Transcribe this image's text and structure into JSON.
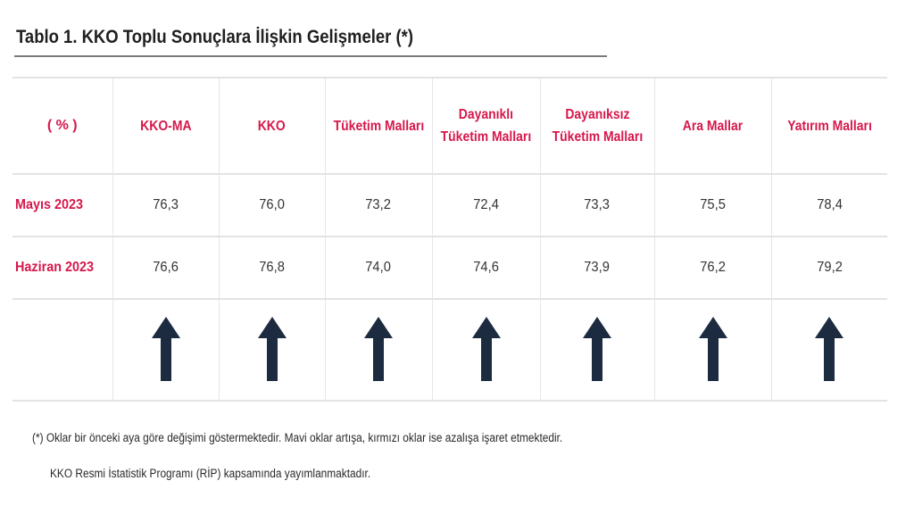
{
  "title": "Tablo 1. KKO Toplu Sonuçlara İlişkin Gelişmeler (*)",
  "table": {
    "corner_label": "( % )",
    "columns": [
      {
        "line1": "KKO-MA",
        "line2": ""
      },
      {
        "line1": "KKO",
        "line2": ""
      },
      {
        "line1": "Tüketim Malları",
        "line2": ""
      },
      {
        "line1": "Dayanıklı",
        "line2": "Tüketim Malları"
      },
      {
        "line1": "Dayanıksız",
        "line2": "Tüketim Malları"
      },
      {
        "line1": "Ara Mallar",
        "line2": ""
      },
      {
        "line1": "Yatırım Malları",
        "line2": ""
      }
    ],
    "rows": [
      {
        "label": "Mayıs 2023",
        "values": [
          "76,3",
          "76,0",
          "73,2",
          "72,4",
          "73,3",
          "75,5",
          "78,4"
        ]
      },
      {
        "label": "Haziran 2023",
        "values": [
          "76,6",
          "76,8",
          "74,0",
          "74,6",
          "73,9",
          "76,2",
          "79,2"
        ]
      }
    ],
    "arrows": [
      "up",
      "up",
      "up",
      "up",
      "up",
      "up",
      "up"
    ],
    "arrow_color": "#1c2b3f",
    "label_color": "#d6184b"
  },
  "notes": {
    "line1": "(*) Oklar bir önceki aya göre değişimi göstermektedir. Mavi oklar artışa, kırmızı oklar ise azalışa işaret etmektedir.",
    "line2": "KKO Resmi İstatistik Programı (RİP) kapsamında yayımlanmaktadır."
  }
}
